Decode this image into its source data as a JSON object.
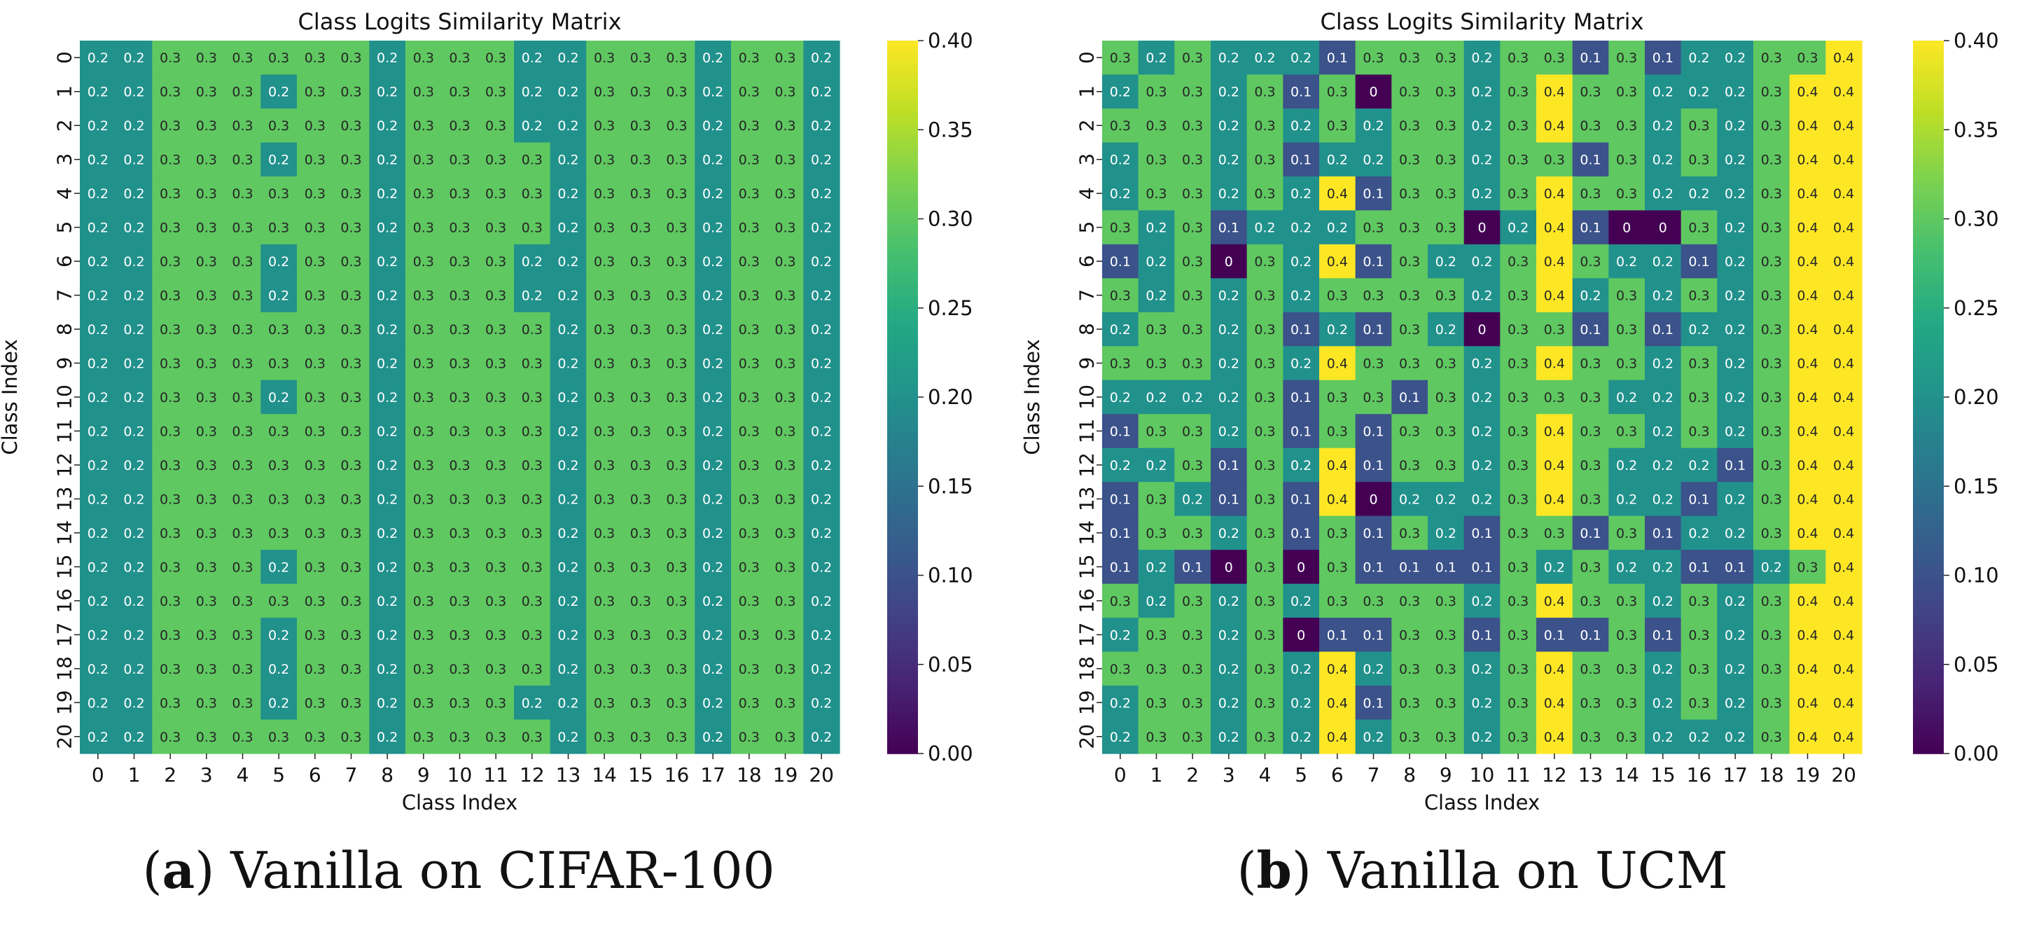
{
  "chart_data": [
    {
      "type": "heatmap",
      "title": "Class Logits Similarity Matrix",
      "xlabel": "Class Index",
      "ylabel": "Class Index",
      "x_ticks": [
        "0",
        "1",
        "2",
        "3",
        "4",
        "5",
        "6",
        "7",
        "8",
        "9",
        "10",
        "11",
        "12",
        "13",
        "14",
        "15",
        "16",
        "17",
        "18",
        "19",
        "20"
      ],
      "y_ticks": [
        "0",
        "1",
        "2",
        "3",
        "4",
        "5",
        "6",
        "7",
        "8",
        "9",
        "10",
        "11",
        "12",
        "13",
        "14",
        "15",
        "16",
        "17",
        "18",
        "19",
        "20"
      ],
      "colormap": "viridis",
      "vmin": 0.0,
      "vmax": 0.4,
      "colorbar_ticks": [
        "0.00",
        "0.05",
        "0.10",
        "0.15",
        "0.20",
        "0.25",
        "0.30",
        "0.35",
        "0.40"
      ],
      "caption_letter": "a",
      "caption_text": " Vanilla on CIFAR-100",
      "values": [
        [
          0.2,
          0.2,
          0.3,
          0.3,
          0.3,
          0.3,
          0.3,
          0.3,
          0.2,
          0.3,
          0.3,
          0.3,
          0.2,
          0.2,
          0.3,
          0.3,
          0.3,
          0.2,
          0.3,
          0.3,
          0.2
        ],
        [
          0.2,
          0.2,
          0.3,
          0.3,
          0.3,
          0.2,
          0.3,
          0.3,
          0.2,
          0.3,
          0.3,
          0.3,
          0.2,
          0.2,
          0.3,
          0.3,
          0.3,
          0.2,
          0.3,
          0.3,
          0.2
        ],
        [
          0.2,
          0.2,
          0.3,
          0.3,
          0.3,
          0.3,
          0.3,
          0.3,
          0.2,
          0.3,
          0.3,
          0.3,
          0.2,
          0.2,
          0.3,
          0.3,
          0.3,
          0.2,
          0.3,
          0.3,
          0.2
        ],
        [
          0.2,
          0.2,
          0.3,
          0.3,
          0.3,
          0.2,
          0.3,
          0.3,
          0.2,
          0.3,
          0.3,
          0.3,
          0.3,
          0.2,
          0.3,
          0.3,
          0.3,
          0.2,
          0.3,
          0.3,
          0.2
        ],
        [
          0.2,
          0.2,
          0.3,
          0.3,
          0.3,
          0.3,
          0.3,
          0.3,
          0.2,
          0.3,
          0.3,
          0.3,
          0.3,
          0.2,
          0.3,
          0.3,
          0.3,
          0.2,
          0.3,
          0.3,
          0.2
        ],
        [
          0.2,
          0.2,
          0.3,
          0.3,
          0.3,
          0.3,
          0.3,
          0.3,
          0.2,
          0.3,
          0.3,
          0.3,
          0.3,
          0.2,
          0.3,
          0.3,
          0.3,
          0.2,
          0.3,
          0.3,
          0.2
        ],
        [
          0.2,
          0.2,
          0.3,
          0.3,
          0.3,
          0.2,
          0.3,
          0.3,
          0.2,
          0.3,
          0.3,
          0.3,
          0.2,
          0.2,
          0.3,
          0.3,
          0.3,
          0.2,
          0.3,
          0.3,
          0.2
        ],
        [
          0.2,
          0.2,
          0.3,
          0.3,
          0.3,
          0.2,
          0.3,
          0.3,
          0.2,
          0.3,
          0.3,
          0.3,
          0.2,
          0.2,
          0.3,
          0.3,
          0.3,
          0.2,
          0.3,
          0.3,
          0.2
        ],
        [
          0.2,
          0.2,
          0.3,
          0.3,
          0.3,
          0.3,
          0.3,
          0.3,
          0.2,
          0.3,
          0.3,
          0.3,
          0.3,
          0.2,
          0.3,
          0.3,
          0.3,
          0.2,
          0.3,
          0.3,
          0.2
        ],
        [
          0.2,
          0.2,
          0.3,
          0.3,
          0.3,
          0.3,
          0.3,
          0.3,
          0.2,
          0.3,
          0.3,
          0.3,
          0.3,
          0.2,
          0.3,
          0.3,
          0.3,
          0.2,
          0.3,
          0.3,
          0.2
        ],
        [
          0.2,
          0.2,
          0.3,
          0.3,
          0.3,
          0.2,
          0.3,
          0.3,
          0.2,
          0.3,
          0.3,
          0.3,
          0.3,
          0.2,
          0.3,
          0.3,
          0.3,
          0.2,
          0.3,
          0.3,
          0.2
        ],
        [
          0.2,
          0.2,
          0.3,
          0.3,
          0.3,
          0.3,
          0.3,
          0.3,
          0.2,
          0.3,
          0.3,
          0.3,
          0.3,
          0.2,
          0.3,
          0.3,
          0.3,
          0.2,
          0.3,
          0.3,
          0.2
        ],
        [
          0.2,
          0.2,
          0.3,
          0.3,
          0.3,
          0.3,
          0.3,
          0.3,
          0.2,
          0.3,
          0.3,
          0.3,
          0.3,
          0.2,
          0.3,
          0.3,
          0.3,
          0.2,
          0.3,
          0.3,
          0.2
        ],
        [
          0.2,
          0.2,
          0.3,
          0.3,
          0.3,
          0.3,
          0.3,
          0.3,
          0.2,
          0.3,
          0.3,
          0.3,
          0.3,
          0.2,
          0.3,
          0.3,
          0.3,
          0.2,
          0.3,
          0.3,
          0.2
        ],
        [
          0.2,
          0.2,
          0.3,
          0.3,
          0.3,
          0.3,
          0.3,
          0.3,
          0.2,
          0.3,
          0.3,
          0.3,
          0.3,
          0.2,
          0.3,
          0.3,
          0.3,
          0.2,
          0.3,
          0.3,
          0.2
        ],
        [
          0.2,
          0.2,
          0.3,
          0.3,
          0.3,
          0.2,
          0.3,
          0.3,
          0.2,
          0.3,
          0.3,
          0.3,
          0.3,
          0.2,
          0.3,
          0.3,
          0.3,
          0.2,
          0.3,
          0.3,
          0.2
        ],
        [
          0.2,
          0.2,
          0.3,
          0.3,
          0.3,
          0.3,
          0.3,
          0.3,
          0.2,
          0.3,
          0.3,
          0.3,
          0.3,
          0.2,
          0.3,
          0.3,
          0.3,
          0.2,
          0.3,
          0.3,
          0.2
        ],
        [
          0.2,
          0.2,
          0.3,
          0.3,
          0.3,
          0.2,
          0.3,
          0.3,
          0.2,
          0.3,
          0.3,
          0.3,
          0.3,
          0.2,
          0.3,
          0.3,
          0.3,
          0.2,
          0.3,
          0.3,
          0.2
        ],
        [
          0.2,
          0.2,
          0.3,
          0.3,
          0.3,
          0.2,
          0.3,
          0.3,
          0.2,
          0.3,
          0.3,
          0.3,
          0.3,
          0.2,
          0.3,
          0.3,
          0.3,
          0.2,
          0.3,
          0.3,
          0.2
        ],
        [
          0.2,
          0.2,
          0.3,
          0.3,
          0.3,
          0.2,
          0.3,
          0.3,
          0.2,
          0.3,
          0.3,
          0.3,
          0.2,
          0.2,
          0.3,
          0.3,
          0.3,
          0.2,
          0.3,
          0.3,
          0.2
        ],
        [
          0.2,
          0.2,
          0.3,
          0.3,
          0.3,
          0.3,
          0.3,
          0.3,
          0.2,
          0.3,
          0.3,
          0.3,
          0.3,
          0.2,
          0.3,
          0.3,
          0.3,
          0.2,
          0.3,
          0.3,
          0.2
        ]
      ]
    },
    {
      "type": "heatmap",
      "title": "Class Logits Similarity Matrix",
      "xlabel": "Class Index",
      "ylabel": "Class Index",
      "x_ticks": [
        "0",
        "1",
        "2",
        "3",
        "4",
        "5",
        "6",
        "7",
        "8",
        "9",
        "10",
        "11",
        "12",
        "13",
        "14",
        "15",
        "16",
        "17",
        "18",
        "19",
        "20"
      ],
      "y_ticks": [
        "0",
        "1",
        "2",
        "3",
        "4",
        "5",
        "6",
        "7",
        "8",
        "9",
        "10",
        "11",
        "12",
        "13",
        "14",
        "15",
        "16",
        "17",
        "18",
        "19",
        "20"
      ],
      "colormap": "viridis",
      "vmin": 0.0,
      "vmax": 0.4,
      "colorbar_ticks": [
        "0.00",
        "0.05",
        "0.10",
        "0.15",
        "0.20",
        "0.25",
        "0.30",
        "0.35",
        "0.40"
      ],
      "caption_letter": "b",
      "caption_text": " Vanilla on UCM",
      "values": [
        [
          0.3,
          0.2,
          0.3,
          0.2,
          0.2,
          0.2,
          0.1,
          0.3,
          0.3,
          0.3,
          0.2,
          0.3,
          0.3,
          0.1,
          0.3,
          0.1,
          0.2,
          0.2,
          0.3,
          0.3,
          0.4
        ],
        [
          0.2,
          0.3,
          0.3,
          0.2,
          0.3,
          0.1,
          0.3,
          0,
          0.3,
          0.3,
          0.2,
          0.3,
          0.4,
          0.3,
          0.3,
          0.2,
          0.2,
          0.2,
          0.3,
          0.4,
          0.4
        ],
        [
          0.3,
          0.3,
          0.3,
          0.2,
          0.3,
          0.2,
          0.3,
          0.2,
          0.3,
          0.3,
          0.2,
          0.3,
          0.4,
          0.3,
          0.3,
          0.2,
          0.3,
          0.2,
          0.3,
          0.4,
          0.4
        ],
        [
          0.2,
          0.3,
          0.3,
          0.2,
          0.3,
          0.1,
          0.2,
          0.2,
          0.3,
          0.3,
          0.2,
          0.3,
          0.3,
          0.1,
          0.3,
          0.2,
          0.3,
          0.2,
          0.3,
          0.4,
          0.4
        ],
        [
          0.2,
          0.3,
          0.3,
          0.2,
          0.3,
          0.2,
          0.4,
          0.1,
          0.3,
          0.3,
          0.2,
          0.3,
          0.4,
          0.3,
          0.3,
          0.2,
          0.2,
          0.2,
          0.3,
          0.4,
          0.4
        ],
        [
          0.3,
          0.2,
          0.3,
          0.1,
          0.2,
          0.2,
          0.2,
          0.3,
          0.3,
          0.3,
          0,
          0.2,
          0.4,
          0.1,
          0,
          0,
          0.3,
          0.2,
          0.3,
          0.4,
          0.4
        ],
        [
          0.1,
          0.2,
          0.3,
          0,
          0.3,
          0.2,
          0.4,
          0.1,
          0.3,
          0.2,
          0.2,
          0.3,
          0.4,
          0.3,
          0.2,
          0.2,
          0.1,
          0.2,
          0.3,
          0.4,
          0.4
        ],
        [
          0.3,
          0.2,
          0.3,
          0.2,
          0.3,
          0.2,
          0.3,
          0.3,
          0.3,
          0.3,
          0.2,
          0.3,
          0.4,
          0.2,
          0.3,
          0.2,
          0.3,
          0.2,
          0.3,
          0.4,
          0.4
        ],
        [
          0.2,
          0.3,
          0.3,
          0.2,
          0.3,
          0.1,
          0.2,
          0.1,
          0.3,
          0.2,
          0,
          0.3,
          0.3,
          0.1,
          0.3,
          0.1,
          0.2,
          0.2,
          0.3,
          0.4,
          0.4
        ],
        [
          0.3,
          0.3,
          0.3,
          0.2,
          0.3,
          0.2,
          0.4,
          0.3,
          0.3,
          0.3,
          0.2,
          0.3,
          0.4,
          0.3,
          0.3,
          0.2,
          0.3,
          0.2,
          0.3,
          0.4,
          0.4
        ],
        [
          0.2,
          0.2,
          0.2,
          0.2,
          0.3,
          0.1,
          0.3,
          0.3,
          0.1,
          0.3,
          0.2,
          0.3,
          0.3,
          0.3,
          0.2,
          0.2,
          0.3,
          0.2,
          0.3,
          0.4,
          0.4
        ],
        [
          0.1,
          0.3,
          0.3,
          0.2,
          0.3,
          0.1,
          0.3,
          0.1,
          0.3,
          0.3,
          0.2,
          0.3,
          0.4,
          0.3,
          0.3,
          0.2,
          0.3,
          0.2,
          0.3,
          0.4,
          0.4
        ],
        [
          0.2,
          0.2,
          0.3,
          0.1,
          0.3,
          0.2,
          0.4,
          0.1,
          0.3,
          0.3,
          0.2,
          0.3,
          0.4,
          0.3,
          0.2,
          0.2,
          0.2,
          0.1,
          0.3,
          0.4,
          0.4
        ],
        [
          0.1,
          0.3,
          0.2,
          0.1,
          0.3,
          0.1,
          0.4,
          0,
          0.2,
          0.2,
          0.2,
          0.3,
          0.4,
          0.3,
          0.2,
          0.2,
          0.1,
          0.2,
          0.3,
          0.4,
          0.4
        ],
        [
          0.1,
          0.3,
          0.3,
          0.2,
          0.3,
          0.1,
          0.3,
          0.1,
          0.3,
          0.2,
          0.1,
          0.3,
          0.3,
          0.1,
          0.3,
          0.1,
          0.2,
          0.2,
          0.3,
          0.4,
          0.4
        ],
        [
          0.1,
          0.2,
          0.1,
          0,
          0.3,
          0,
          0.3,
          0.1,
          0.1,
          0.1,
          0.1,
          0.3,
          0.2,
          0.3,
          0.2,
          0.2,
          0.1,
          0.1,
          0.2,
          0.3,
          0.4
        ],
        [
          0.3,
          0.2,
          0.3,
          0.2,
          0.3,
          0.2,
          0.3,
          0.3,
          0.3,
          0.3,
          0.2,
          0.3,
          0.4,
          0.3,
          0.3,
          0.2,
          0.3,
          0.2,
          0.3,
          0.4,
          0.4
        ],
        [
          0.2,
          0.3,
          0.3,
          0.2,
          0.3,
          0,
          0.1,
          0.1,
          0.3,
          0.3,
          0.1,
          0.3,
          0.1,
          0.1,
          0.3,
          0.1,
          0.3,
          0.2,
          0.3,
          0.4,
          0.4
        ],
        [
          0.3,
          0.3,
          0.3,
          0.2,
          0.3,
          0.2,
          0.4,
          0.2,
          0.3,
          0.3,
          0.2,
          0.3,
          0.4,
          0.3,
          0.3,
          0.2,
          0.3,
          0.2,
          0.3,
          0.4,
          0.4
        ],
        [
          0.2,
          0.3,
          0.3,
          0.2,
          0.3,
          0.2,
          0.4,
          0.1,
          0.3,
          0.3,
          0.2,
          0.3,
          0.4,
          0.3,
          0.3,
          0.2,
          0.3,
          0.2,
          0.3,
          0.4,
          0.4
        ],
        [
          0.2,
          0.3,
          0.3,
          0.2,
          0.3,
          0.2,
          0.4,
          0.2,
          0.3,
          0.3,
          0.2,
          0.3,
          0.4,
          0.3,
          0.3,
          0.2,
          0.2,
          0.2,
          0.3,
          0.4,
          0.4
        ]
      ]
    }
  ]
}
